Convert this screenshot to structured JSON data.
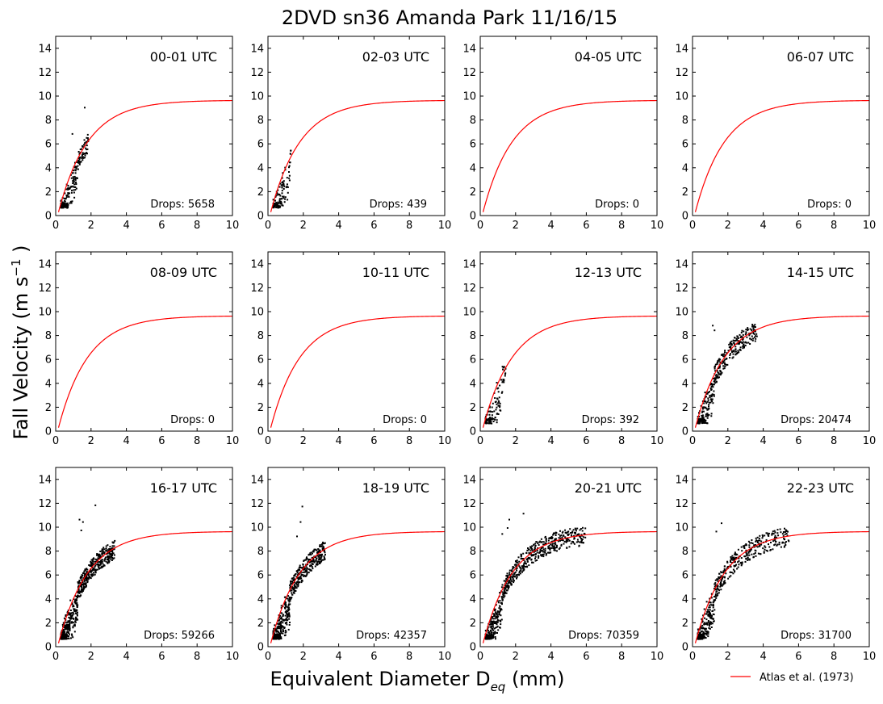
{
  "chart_data": {
    "type": "scatter",
    "title": "2DVD sn36 Amanda Park 11/16/15",
    "xlabel": "Equivalent Diameter D",
    "xlabel_sub": "eq",
    "xlabel_unit": "(mm)",
    "ylabel": "Fall Velocity (m s",
    "ylabel_sup": "−1",
    "ylabel_end": ")",
    "xlim": [
      0,
      10
    ],
    "ylim": [
      0,
      15
    ],
    "xticks": [
      0,
      2,
      4,
      6,
      8,
      10
    ],
    "yticks": [
      0,
      2,
      4,
      6,
      8,
      10,
      12,
      14
    ],
    "grid": false,
    "legend_position": "bottom-right",
    "reference_curve": {
      "name": "Atlas et al. (1973)",
      "color": "#ff0000",
      "formula": "v = 9.65 - 10.3*exp(-0.6*D)"
    },
    "marker_color": "#000000",
    "drops_label": "Drops:",
    "panels": [
      {
        "label": "00-01 UTC",
        "drops": "5658",
        "d_max": 1.8,
        "outliers": [
          [
            1.6,
            9.1
          ],
          [
            0.9,
            6.9
          ]
        ]
      },
      {
        "label": "02-03 UTC",
        "drops": "439",
        "d_max": 1.3,
        "outliers": [
          [
            0.8,
            0.9
          ],
          [
            0.9,
            1.2
          ]
        ]
      },
      {
        "label": "04-05 UTC",
        "drops": "0",
        "d_max": 0,
        "outliers": []
      },
      {
        "label": "06-07 UTC",
        "drops": "0",
        "d_max": 0,
        "outliers": []
      },
      {
        "label": "08-09 UTC",
        "drops": "0",
        "d_max": 0,
        "outliers": []
      },
      {
        "label": "10-11 UTC",
        "drops": "0",
        "d_max": 0,
        "outliers": []
      },
      {
        "label": "12-13 UTC",
        "drops": "392",
        "d_max": 1.4,
        "outliers": [
          [
            0.8,
            1.2
          ],
          [
            0.9,
            1.0
          ]
        ]
      },
      {
        "label": "14-15 UTC",
        "drops": "20474",
        "d_max": 3.6,
        "outliers": [
          [
            1.1,
            8.9
          ],
          [
            1.2,
            8.5
          ],
          [
            3.6,
            8.0
          ]
        ]
      },
      {
        "label": "16-17 UTC",
        "drops": "59266",
        "d_max": 3.3,
        "outliers": [
          [
            1.3,
            10.7
          ],
          [
            1.5,
            10.5
          ],
          [
            2.2,
            11.9
          ],
          [
            1.4,
            9.8
          ]
        ]
      },
      {
        "label": "18-19 UTC",
        "drops": "42357",
        "d_max": 3.2,
        "outliers": [
          [
            1.9,
            11.8
          ],
          [
            1.8,
            10.5
          ],
          [
            1.6,
            9.3
          ]
        ]
      },
      {
        "label": "20-21 UTC",
        "drops": "70359",
        "d_max": 5.9,
        "outliers": [
          [
            1.6,
            10.7
          ],
          [
            2.4,
            11.2
          ],
          [
            1.5,
            10.0
          ],
          [
            5.9,
            9.2
          ],
          [
            1.2,
            9.5
          ]
        ]
      },
      {
        "label": "22-23 UTC",
        "drops": "31700",
        "d_max": 5.4,
        "outliers": [
          [
            1.6,
            10.4
          ],
          [
            1.3,
            9.7
          ],
          [
            5.4,
            8.9
          ]
        ]
      }
    ]
  }
}
